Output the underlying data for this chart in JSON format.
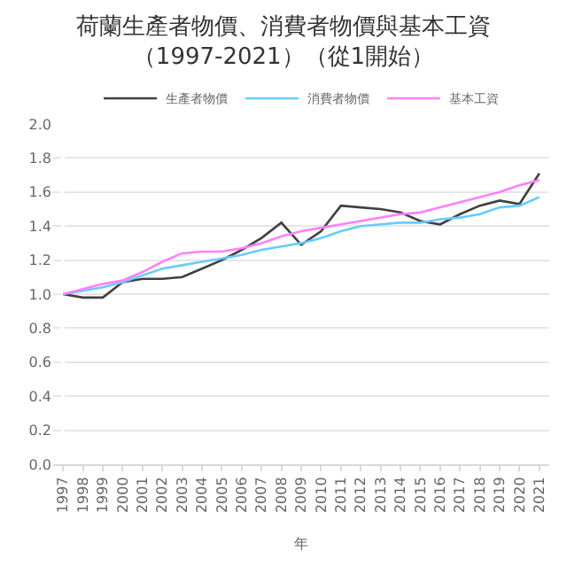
{
  "chart_data": {
    "type": "line",
    "title": "荷蘭生產者物價、消費者物價與基本工資",
    "subtitle": "（1997-2021）（從1開始）",
    "xlabel": "年",
    "categories": [
      "1997",
      "1998",
      "1999",
      "2000",
      "2001",
      "2002",
      "2003",
      "2004",
      "2005",
      "2006",
      "2007",
      "2008",
      "2009",
      "2010",
      "2011",
      "2012",
      "2013",
      "2014",
      "2015",
      "2016",
      "2017",
      "2018",
      "2019",
      "2020",
      "2021"
    ],
    "series": [
      {
        "name": "生產者物價",
        "color": "#404040",
        "values": [
          1.0,
          0.98,
          0.98,
          1.07,
          1.09,
          1.09,
          1.1,
          1.15,
          1.2,
          1.26,
          1.33,
          1.42,
          1.29,
          1.37,
          1.52,
          1.51,
          1.5,
          1.48,
          1.43,
          1.41,
          1.47,
          1.52,
          1.55,
          1.53,
          1.71
        ]
      },
      {
        "name": "消費者物價",
        "color": "#66ccff",
        "values": [
          1.0,
          1.02,
          1.04,
          1.07,
          1.11,
          1.15,
          1.17,
          1.19,
          1.21,
          1.23,
          1.26,
          1.28,
          1.3,
          1.33,
          1.37,
          1.4,
          1.41,
          1.42,
          1.42,
          1.44,
          1.45,
          1.47,
          1.51,
          1.52,
          1.57
        ]
      },
      {
        "name": "基本工資",
        "color": "#ff80ff",
        "values": [
          1.0,
          1.03,
          1.06,
          1.08,
          1.13,
          1.19,
          1.24,
          1.25,
          1.25,
          1.27,
          1.3,
          1.34,
          1.37,
          1.39,
          1.41,
          1.43,
          1.45,
          1.47,
          1.48,
          1.51,
          1.54,
          1.57,
          1.6,
          1.64,
          1.67
        ]
      }
    ],
    "ylim": [
      0,
      2.0
    ],
    "yticks": [
      {
        "value": 0,
        "label": "0.0"
      },
      {
        "value": 0.2,
        "label": "0.2"
      },
      {
        "value": 0.4,
        "label": "0.4"
      },
      {
        "value": 0.6,
        "label": "0.6"
      },
      {
        "value": 0.8,
        "label": "0.8"
      },
      {
        "value": 1.0,
        "label": "1.0"
      },
      {
        "value": 1.2,
        "label": "1.2"
      },
      {
        "value": 1.4,
        "label": "1.4"
      },
      {
        "value": 1.6,
        "label": "1.6"
      },
      {
        "value": 1.8,
        "label": "1.8"
      },
      {
        "value": 2.0,
        "label": "2.0"
      }
    ],
    "grid": "y",
    "legend": "top",
    "marker": "none",
    "line_style": "solid"
  }
}
